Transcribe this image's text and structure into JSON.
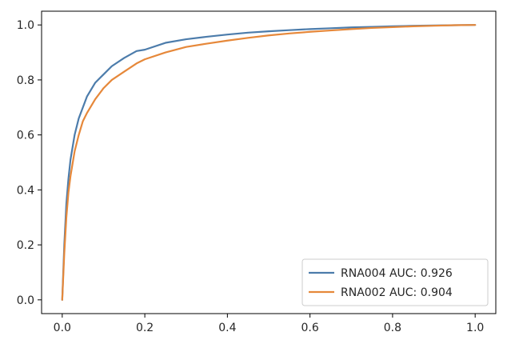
{
  "chart_data": {
    "type": "line",
    "title": "",
    "xlabel": "",
    "ylabel": "",
    "xlim": [
      -0.05,
      1.05
    ],
    "ylim": [
      -0.05,
      1.05
    ],
    "x_ticks": [
      0.0,
      0.2,
      0.4,
      0.6,
      0.8,
      1.0
    ],
    "x_tick_labels": [
      "0.0",
      "0.2",
      "0.4",
      "0.6",
      "0.8",
      "1.0"
    ],
    "y_ticks": [
      0.0,
      0.2,
      0.4,
      0.6,
      0.8,
      1.0
    ],
    "y_tick_labels": [
      "0.0",
      "0.2",
      "0.4",
      "0.6",
      "0.8",
      "1.0"
    ],
    "grid": false,
    "legend_position": "lower-right",
    "series": [
      {
        "name": "RNA004 AUC: 0.926",
        "color": "#4c7cab",
        "x": [
          0.0,
          0.005,
          0.01,
          0.015,
          0.02,
          0.03,
          0.04,
          0.05,
          0.06,
          0.08,
          0.1,
          0.12,
          0.15,
          0.18,
          0.2,
          0.25,
          0.3,
          0.35,
          0.4,
          0.45,
          0.5,
          0.55,
          0.6,
          0.65,
          0.7,
          0.75,
          0.8,
          0.85,
          0.9,
          0.95,
          1.0
        ],
        "y": [
          0.0,
          0.2,
          0.35,
          0.44,
          0.51,
          0.6,
          0.66,
          0.7,
          0.74,
          0.79,
          0.82,
          0.85,
          0.88,
          0.905,
          0.91,
          0.935,
          0.948,
          0.957,
          0.965,
          0.972,
          0.977,
          0.981,
          0.985,
          0.988,
          0.991,
          0.993,
          0.995,
          0.997,
          0.998,
          0.999,
          1.0
        ]
      },
      {
        "name": "RNA002 AUC: 0.904",
        "color": "#e6883a",
        "x": [
          0.0,
          0.005,
          0.01,
          0.015,
          0.02,
          0.03,
          0.04,
          0.05,
          0.06,
          0.08,
          0.1,
          0.12,
          0.15,
          0.18,
          0.2,
          0.25,
          0.3,
          0.35,
          0.4,
          0.45,
          0.5,
          0.55,
          0.6,
          0.65,
          0.7,
          0.75,
          0.8,
          0.85,
          0.9,
          0.95,
          1.0
        ],
        "y": [
          0.0,
          0.17,
          0.3,
          0.39,
          0.45,
          0.54,
          0.6,
          0.65,
          0.68,
          0.73,
          0.77,
          0.8,
          0.83,
          0.86,
          0.875,
          0.9,
          0.92,
          0.932,
          0.943,
          0.953,
          0.962,
          0.969,
          0.975,
          0.98,
          0.985,
          0.989,
          0.992,
          0.995,
          0.997,
          0.999,
          1.0
        ]
      }
    ]
  }
}
